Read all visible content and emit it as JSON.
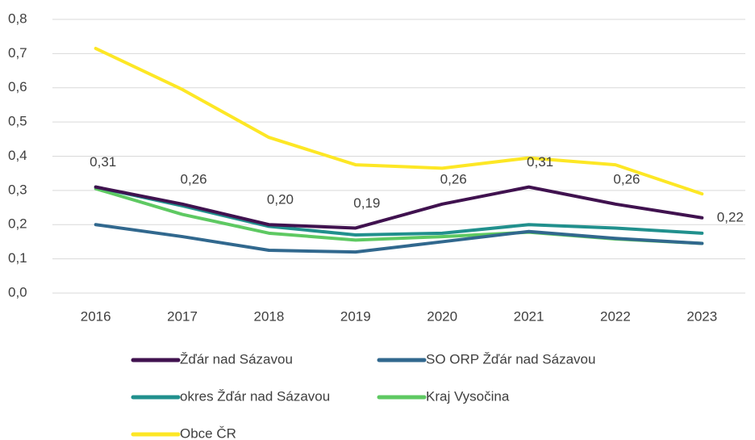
{
  "chart_data": {
    "type": "line",
    "categories": [
      "2016",
      "2017",
      "2018",
      "2019",
      "2020",
      "2021",
      "2022",
      "2023"
    ],
    "series": [
      {
        "name": "Žďár nad Sázavou",
        "color": "#40124f",
        "values": [
          0.31,
          0.26,
          0.2,
          0.19,
          0.26,
          0.31,
          0.26,
          0.22
        ],
        "value_labels": [
          "0,31",
          "0,26",
          "0,20",
          "0,19",
          "0,26",
          "0,31",
          "0,26",
          "0,22"
        ]
      },
      {
        "name": "SO ORP Žďár nad Sázavou",
        "color": "#31688e",
        "values": [
          0.2,
          0.165,
          0.125,
          0.12,
          0.15,
          0.18,
          0.16,
          0.145
        ]
      },
      {
        "name": "okres Žďár nad Sázavou",
        "color": "#21908d",
        "values": [
          0.31,
          0.255,
          0.195,
          0.17,
          0.175,
          0.2,
          0.19,
          0.175
        ]
      },
      {
        "name": "Kraj Vysočina",
        "color": "#5ec962",
        "values": [
          0.305,
          0.23,
          0.175,
          0.155,
          0.165,
          0.178,
          0.158,
          0.145
        ]
      },
      {
        "name": "Obce ČR",
        "color": "#fde725",
        "values": [
          0.715,
          0.595,
          0.455,
          0.375,
          0.365,
          0.395,
          0.375,
          0.29
        ]
      }
    ],
    "ylim": [
      0,
      0.8
    ],
    "yticks": [
      {
        "value": 0,
        "label": "0,0"
      },
      {
        "value": 0.1,
        "label": "0,1"
      },
      {
        "value": 0.2,
        "label": "0,2"
      },
      {
        "value": 0.3,
        "label": "0,3"
      },
      {
        "value": 0.4,
        "label": "0,4"
      },
      {
        "value": 0.5,
        "label": "0,5"
      },
      {
        "value": 0.6,
        "label": "0,6"
      },
      {
        "value": 0.7,
        "label": "0,7"
      },
      {
        "value": 0.8,
        "label": "0,8"
      }
    ],
    "grid": true,
    "legend": "bottom"
  }
}
